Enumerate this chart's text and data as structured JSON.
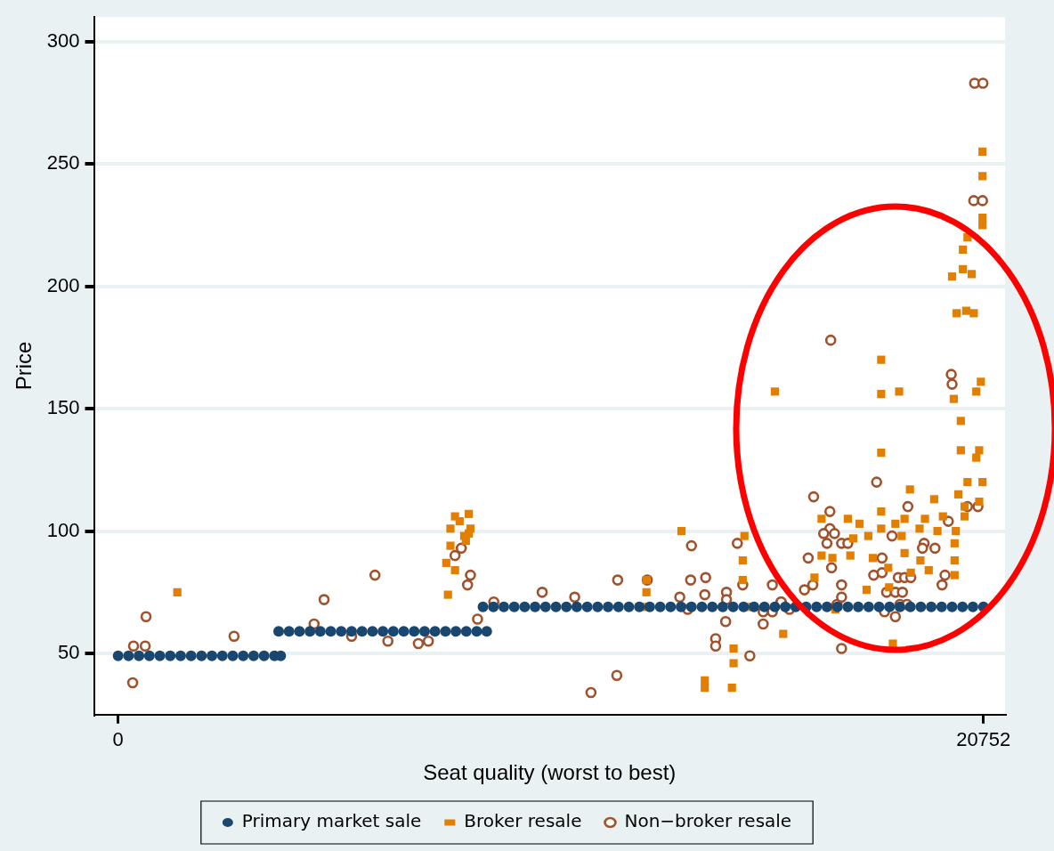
{
  "chart_data": {
    "type": "scatter",
    "xlabel": "Seat quality (worst to best)",
    "ylabel": "Price",
    "xlim": [
      -580,
      21270
    ],
    "xticks": [
      0,
      20752
    ],
    "ylim": [
      25,
      310
    ],
    "yticks": [
      50,
      100,
      150,
      200,
      250,
      300
    ],
    "grid": "y",
    "legend": "bottom",
    "series": [
      {
        "name": "Primary market sale",
        "color": "#1a476f",
        "marker": "circle",
        "x": [
          0,
          250,
          500,
          750,
          1000,
          1250,
          1500,
          1750,
          2000,
          2250,
          2500,
          2750,
          3000,
          3250,
          3500,
          3750,
          3900,
          3850,
          4100,
          4350,
          4600,
          4850,
          5100,
          5350,
          5600,
          5850,
          6100,
          6350,
          6600,
          6850,
          7100,
          7350,
          7600,
          7850,
          8100,
          8350,
          8600,
          8840,
          8750,
          9000,
          9250,
          9500,
          9750,
          10000,
          10250,
          10500,
          10750,
          11000,
          11250,
          11500,
          11750,
          12000,
          12250,
          12500,
          12750,
          13000,
          13250,
          13500,
          13750,
          14000,
          14250,
          14500,
          14750,
          15000,
          15250,
          15500,
          15750,
          16000,
          16250,
          16500,
          16750,
          17000,
          17250,
          17500,
          17750,
          18000,
          18250,
          18500,
          18750,
          19000,
          19250,
          19500,
          19750,
          20000,
          20250,
          20500,
          20752
        ],
        "values": [
          49,
          49,
          49,
          49,
          49,
          49,
          49,
          49,
          49,
          49,
          49,
          49,
          49,
          49,
          49,
          49,
          49,
          59,
          59,
          59,
          59,
          59,
          59,
          59,
          59,
          59,
          59,
          59,
          59,
          59,
          59,
          59,
          59,
          59,
          59,
          59,
          59,
          59,
          69,
          69,
          69,
          69,
          69,
          69,
          69,
          69,
          69,
          69,
          69,
          69,
          69,
          69,
          69,
          69,
          69,
          69,
          69,
          69,
          69,
          69,
          69,
          69,
          69,
          69,
          69,
          69,
          69,
          69,
          69,
          69,
          69,
          69,
          69,
          69,
          69,
          69,
          69,
          69,
          69,
          69,
          69,
          69,
          69,
          69,
          69,
          69,
          69
        ]
      },
      {
        "name": "Broker resale",
        "color": "#e37f00",
        "marker": "square",
        "x": [
          1420,
          7910,
          7870,
          7970,
          7970,
          8080,
          8190,
          8410,
          8450,
          8340,
          8300,
          8080,
          8410,
          13510,
          12670,
          12670,
          12670,
          15020,
          14980,
          14980,
          15130,
          14760,
          14760,
          14720,
          14070,
          14070,
          15750,
          15950,
          18300,
          18300,
          18730,
          18300,
          18990,
          19570,
          18300,
          16870,
          17500,
          17780,
          18300,
          18640,
          18860,
          19350,
          19780,
          20300,
          17630,
          17990,
          18790,
          19220,
          19650,
          20090,
          16870,
          17130,
          17560,
          18100,
          18860,
          19240,
          19440,
          20060,
          20060,
          20060,
          16700,
          18470,
          19010,
          17200,
          17950,
          18490,
          18580,
          20110,
          20520,
          20040,
          20210,
          20690,
          20580,
          20210,
          20650,
          20580,
          20370,
          20730,
          20150,
          20650,
          20300,
          20730,
          20730,
          20730,
          20730,
          20370,
          20260,
          20260,
          20000,
          20470,
          20340
        ],
        "values": [
          75,
          74,
          87,
          94,
          101,
          106,
          104,
          107,
          101,
          96,
          98,
          84,
          99,
          100,
          80,
          75,
          69,
          98,
          88,
          80,
          69,
          52,
          46,
          36,
          39,
          36,
          157,
          58,
          170,
          156,
          157,
          132,
          117,
          113,
          108,
          105,
          105,
          103,
          101,
          103,
          105,
          105,
          106,
          106,
          97,
          98,
          98,
          101,
          100,
          100,
          90,
          89,
          90,
          89,
          91,
          88,
          84,
          95,
          88,
          82,
          81,
          85,
          83,
          68,
          76,
          77,
          54,
          189,
          189,
          154,
          145,
          161,
          157,
          133,
          133,
          130,
          120,
          120,
          115,
          112,
          110,
          255,
          245,
          228,
          225,
          220,
          215,
          207,
          204,
          205,
          190
        ]
      },
      {
        "name": "Non−broker resale",
        "color": "#a0522d",
        "marker": "circle",
        "x": [
          350,
          370,
          650,
          670,
          2780,
          4700,
          4940,
          6160,
          5600,
          6470,
          7200,
          7440,
          8080,
          8230,
          8450,
          8380,
          8620,
          9010,
          10170,
          10950,
          11980,
          12690,
          11340,
          11960,
          13750,
          13470,
          13730,
          14090,
          14070,
          13660,
          14590,
          14590,
          14570,
          14330,
          14330,
          14850,
          14980,
          15150,
          15470,
          15690,
          15470,
          15690,
          15900,
          17090,
          18190,
          16680,
          17070,
          17070,
          16920,
          17180,
          17000,
          17350,
          17500,
          16550,
          17110,
          16460,
          16660,
          17350,
          15900,
          16100,
          17240,
          17350,
          17350,
          18560,
          18320,
          18120,
          18320,
          18430,
          18640,
          18810,
          18710,
          18860,
          19010,
          18380,
          18640,
          18750,
          18920,
          18940,
          19330,
          19290,
          19590,
          19910,
          19830,
          19760,
          19980,
          20000,
          20370,
          20620,
          20540,
          20740,
          20520,
          20730
        ],
        "values": [
          38,
          53,
          53,
          65,
          57,
          62,
          72,
          82,
          57,
          55,
          54,
          55,
          90,
          93,
          82,
          78,
          64,
          71,
          75,
          73,
          80,
          80,
          34,
          41,
          94,
          73,
          80,
          81,
          74,
          68,
          75,
          72,
          63,
          56,
          53,
          95,
          78,
          49,
          67,
          67,
          62,
          78,
          71,
          178,
          120,
          114,
          108,
          101,
          99,
          99,
          95,
          95,
          95,
          89,
          85,
          76,
          78,
          78,
          71,
          68,
          70,
          73,
          52,
          98,
          89,
          82,
          83,
          75,
          75,
          75,
          81,
          81,
          81,
          67,
          65,
          70,
          70,
          110,
          95,
          93,
          93,
          104,
          82,
          78,
          164,
          160,
          110,
          110,
          283,
          283,
          235,
          235
        ]
      }
    ]
  }
}
